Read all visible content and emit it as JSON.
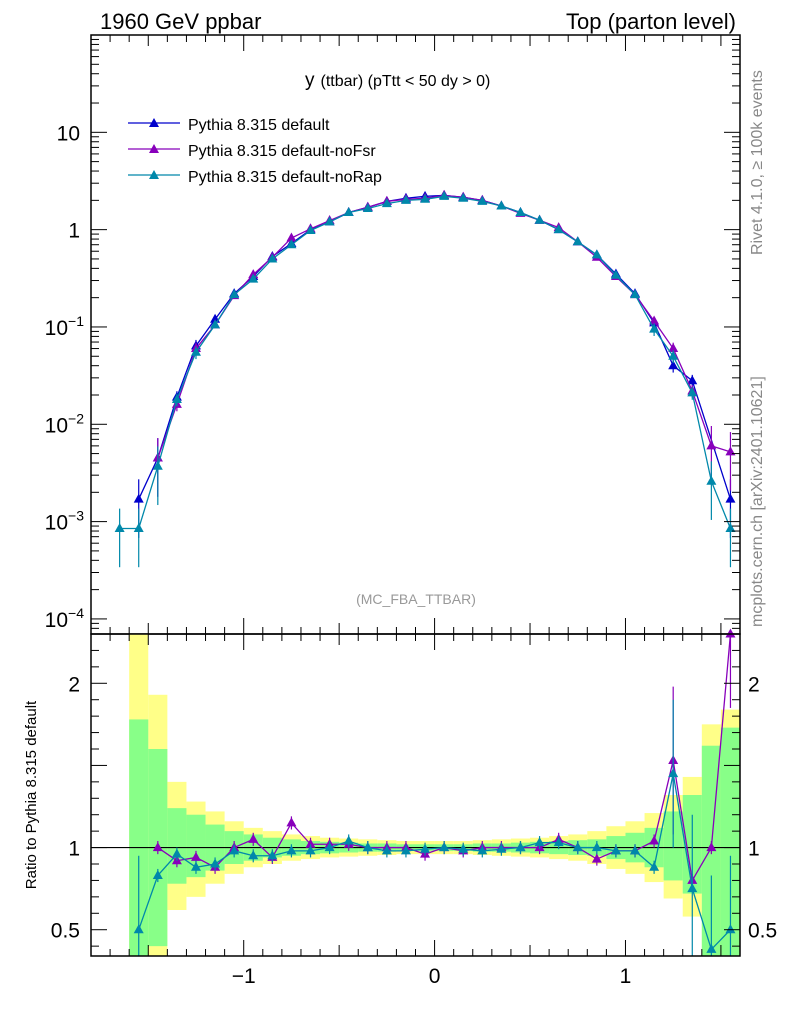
{
  "header": {
    "left": "1960 GeV ppbar",
    "right": "Top (parton level)"
  },
  "side": {
    "rivet": "Rivet 4.1.0, ≥ 100k events",
    "mcplots": "mcplots.cern.ch [arXiv:2401.10621]"
  },
  "colors": {
    "default": "#0000cc",
    "noFsr": "#8800bb",
    "noRap": "#0088aa",
    "band_inner": "#88ff88",
    "band_outer": "#ffff88"
  },
  "chart_data": [
    {
      "type": "line",
      "title_main": "y",
      "title_rest": "(ttbar) (pTtt < 50 dy > 0)",
      "watermark": "(MC_FBA_TTBAR)",
      "yscale": "log",
      "ylim": [
        7e-05,
        100
      ],
      "xlim": [
        -1.8,
        1.6
      ],
      "y_ticks": [
        {
          "value": 0.0001,
          "base": "10",
          "exp": "−4"
        },
        {
          "value": 0.001,
          "base": "10",
          "exp": "−3"
        },
        {
          "value": 0.01,
          "base": "10",
          "exp": "−2"
        },
        {
          "value": 0.1,
          "base": "10",
          "exp": "−1"
        },
        {
          "value": 1,
          "base": "1",
          "exp": ""
        },
        {
          "value": 10,
          "base": "10",
          "exp": ""
        }
      ],
      "legend": [
        "Pythia 8.315 default",
        "Pythia 8.315 default-noFsr",
        "Pythia 8.315 default-noRap"
      ],
      "x": [
        -1.65,
        -1.55,
        -1.45,
        -1.35,
        -1.25,
        -1.15,
        -1.05,
        -0.95,
        -0.85,
        -0.75,
        -0.65,
        -0.55,
        -0.45,
        -0.35,
        -0.25,
        -0.15,
        -0.05,
        0.05,
        0.15,
        0.25,
        0.35,
        0.45,
        0.55,
        0.65,
        0.75,
        0.85,
        0.95,
        1.05,
        1.15,
        1.25,
        1.35,
        1.45,
        1.55
      ],
      "series": [
        {
          "name": "Pythia 8.315 default",
          "key": "default",
          "values": [
            null,
            0.0017,
            0.0045,
            0.019,
            0.064,
            0.12,
            0.22,
            0.33,
            0.53,
            0.72,
            1.0,
            1.2,
            1.5,
            1.7,
            1.95,
            2.1,
            2.2,
            2.25,
            2.15,
            2.0,
            1.75,
            1.5,
            1.25,
            1.0,
            0.75,
            0.55,
            0.35,
            0.22,
            0.11,
            0.04,
            0.028,
            null,
            0.0017
          ]
        },
        {
          "name": "Pythia 8.315 default-noFsr",
          "key": "noFsr",
          "values": [
            null,
            null,
            0.0045,
            0.016,
            0.06,
            0.105,
            0.21,
            0.345,
            0.52,
            0.82,
            1.02,
            1.24,
            1.5,
            1.7,
            1.95,
            2.05,
            2.1,
            2.25,
            2.15,
            2.0,
            1.75,
            1.47,
            1.25,
            1.05,
            0.75,
            0.52,
            0.33,
            0.215,
            0.115,
            0.06,
            0.022,
            0.006,
            0.0052
          ]
        },
        {
          "name": "Pythia 8.315 default-noRap",
          "key": "noRap",
          "values": [
            0.00085,
            0.00085,
            0.0037,
            0.018,
            0.055,
            0.105,
            0.215,
            0.31,
            0.5,
            0.7,
            0.98,
            1.2,
            1.5,
            1.65,
            1.85,
            2.0,
            2.05,
            2.2,
            2.1,
            1.95,
            1.75,
            1.5,
            1.25,
            1.0,
            0.75,
            0.55,
            0.34,
            0.215,
            0.095,
            0.05,
            0.021,
            0.0026,
            0.00085
          ]
        }
      ]
    },
    {
      "type": "line",
      "ylabel": "Ratio to Pythia 8.315 default",
      "ylim": [
        0.34,
        2.3
      ],
      "xlim": [
        -1.8,
        1.6
      ],
      "y_tick_labels": [
        {
          "value": 0.5,
          "label": "0.5"
        },
        {
          "value": 1,
          "label": "1"
        },
        {
          "value": 2,
          "label": "2"
        }
      ],
      "x_tick_labels": [
        {
          "value": -1,
          "label": "−1"
        },
        {
          "value": 0,
          "label": "0"
        },
        {
          "value": 1,
          "label": "1"
        }
      ],
      "x": [
        -1.65,
        -1.55,
        -1.45,
        -1.35,
        -1.25,
        -1.15,
        -1.05,
        -0.95,
        -0.85,
        -0.75,
        -0.65,
        -0.55,
        -0.45,
        -0.35,
        -0.25,
        -0.15,
        -0.05,
        0.05,
        0.15,
        0.25,
        0.35,
        0.45,
        0.55,
        0.65,
        0.75,
        0.85,
        0.95,
        1.05,
        1.15,
        1.25,
        1.35,
        1.45,
        1.55
      ],
      "band_inner": [
        null,
        [
          0.3,
          1.78
        ],
        [
          0.4,
          1.6
        ],
        [
          0.78,
          1.24
        ],
        [
          0.82,
          1.2
        ],
        [
          0.86,
          1.14
        ],
        [
          0.9,
          1.1
        ],
        [
          0.92,
          1.08
        ],
        [
          0.94,
          1.06
        ],
        [
          0.95,
          1.05
        ],
        [
          0.96,
          1.04
        ],
        [
          0.965,
          1.035
        ],
        [
          0.97,
          1.03
        ],
        [
          0.975,
          1.025
        ],
        [
          0.975,
          1.025
        ],
        [
          0.98,
          1.02
        ],
        [
          0.98,
          1.02
        ],
        [
          0.98,
          1.02
        ],
        [
          0.98,
          1.02
        ],
        [
          0.975,
          1.025
        ],
        [
          0.975,
          1.025
        ],
        [
          0.97,
          1.03
        ],
        [
          0.965,
          1.035
        ],
        [
          0.96,
          1.04
        ],
        [
          0.955,
          1.045
        ],
        [
          0.95,
          1.05
        ],
        [
          0.93,
          1.07
        ],
        [
          0.91,
          1.09
        ],
        [
          0.88,
          1.12
        ],
        [
          0.8,
          1.22
        ],
        [
          0.72,
          1.32
        ],
        [
          0.3,
          1.62
        ],
        [
          0.3,
          1.73
        ]
      ],
      "band_outer": [
        null,
        [
          0.3,
          2.3
        ],
        [
          0.3,
          1.93
        ],
        [
          0.62,
          1.4
        ],
        [
          0.7,
          1.28
        ],
        [
          0.78,
          1.22
        ],
        [
          0.84,
          1.16
        ],
        [
          0.88,
          1.12
        ],
        [
          0.9,
          1.1
        ],
        [
          0.92,
          1.08
        ],
        [
          0.93,
          1.07
        ],
        [
          0.94,
          1.06
        ],
        [
          0.945,
          1.055
        ],
        [
          0.95,
          1.05
        ],
        [
          0.955,
          1.045
        ],
        [
          0.96,
          1.04
        ],
        [
          0.96,
          1.04
        ],
        [
          0.96,
          1.04
        ],
        [
          0.96,
          1.04
        ],
        [
          0.955,
          1.045
        ],
        [
          0.95,
          1.05
        ],
        [
          0.945,
          1.055
        ],
        [
          0.94,
          1.06
        ],
        [
          0.93,
          1.07
        ],
        [
          0.92,
          1.08
        ],
        [
          0.9,
          1.1
        ],
        [
          0.87,
          1.13
        ],
        [
          0.84,
          1.16
        ],
        [
          0.79,
          1.21
        ],
        [
          0.69,
          1.32
        ],
        [
          0.58,
          1.43
        ],
        [
          0.3,
          1.75
        ],
        [
          0.3,
          1.84
        ]
      ],
      "series": [
        {
          "name": "Pythia 8.315 default-noFsr",
          "key": "noFsr",
          "values": [
            null,
            null,
            1.0,
            0.92,
            0.94,
            0.88,
            1.0,
            1.05,
            0.94,
            1.15,
            1.02,
            1.02,
            1.02,
            1.0,
            1.0,
            1.0,
            0.96,
            1.0,
            0.98,
            1.0,
            1.0,
            1.0,
            1.0,
            1.05,
            1.0,
            0.93,
            0.98,
            0.98,
            1.04,
            1.53,
            0.8,
            1.0,
            2.3
          ]
        },
        {
          "name": "Pythia 8.315 default-noRap",
          "key": "noRap",
          "values": [
            null,
            0.5,
            0.83,
            0.96,
            0.88,
            0.9,
            0.98,
            0.95,
            0.95,
            0.98,
            0.98,
            1.0,
            1.04,
            1.0,
            0.98,
            0.98,
            0.99,
            1.0,
            0.99,
            0.98,
            0.99,
            1.0,
            1.03,
            1.03,
            1.0,
            1.0,
            0.98,
            0.98,
            0.88,
            1.45,
            0.75,
            0.38,
            0.5
          ]
        }
      ]
    }
  ]
}
